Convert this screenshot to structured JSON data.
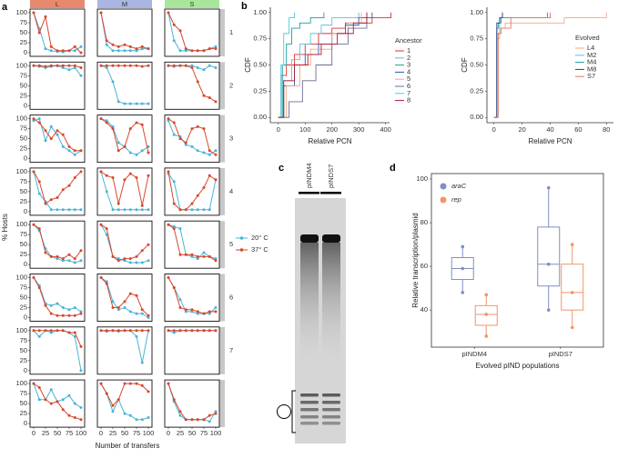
{
  "chart_data": [
    {
      "type": "small-multiples-line",
      "panel_label": "a",
      "x_label": "Number of transfers",
      "y_label": "% Hosts",
      "columns": [
        "L",
        "M",
        "S"
      ],
      "column_colors": [
        "#e8896d",
        "#a9b5e2",
        "#a8e69c"
      ],
      "rows": [
        "1",
        "2",
        "3",
        "4",
        "5",
        "6",
        "7",
        null
      ],
      "x": [
        0,
        12,
        25,
        37,
        50,
        62,
        75,
        87,
        100
      ],
      "xlim": [
        0,
        100
      ],
      "xticks": [
        0,
        25,
        50,
        75,
        100
      ],
      "ylim": [
        0,
        100
      ],
      "yticks": [
        0,
        25,
        50,
        75,
        100
      ],
      "series": [
        {
          "name": "20° C",
          "color": "#4bb4d6",
          "values": [
            [
              [
                100,
                60,
                10,
                5,
                3,
                2,
                5,
                5,
                15
              ],
              [
                100,
                20,
                5,
                5,
                5,
                5,
                5,
                10,
                10
              ],
              [
                100,
                30,
                5,
                5,
                5,
                5,
                5,
                10,
                15
              ]
            ],
            [
              [
                100,
                98,
                95,
                98,
                100,
                95,
                90,
                95,
                75
              ],
              [
                100,
                95,
                60,
                10,
                5,
                5,
                5,
                5,
                5
              ],
              [
                100,
                98,
                100,
                100,
                100,
                95,
                90,
                100,
                95
              ]
            ],
            [
              [
                95,
                100,
                45,
                80,
                60,
                30,
                20,
                10,
                20
              ],
              [
                100,
                95,
                80,
                40,
                30,
                15,
                10,
                20,
                30
              ],
              [
                95,
                60,
                55,
                35,
                30,
                20,
                15,
                10,
                20
              ]
            ],
            [
              [
                100,
                45,
                25,
                5,
                5,
                5,
                5,
                5,
                5
              ],
              [
                100,
                50,
                5,
                5,
                5,
                5,
                5,
                5,
                5
              ],
              [
                95,
                75,
                5,
                5,
                5,
                5,
                5,
                5,
                80
              ]
            ],
            [
              [
                100,
                85,
                40,
                20,
                15,
                10,
                10,
                5,
                10
              ],
              [
                100,
                75,
                20,
                15,
                10,
                5,
                5,
                5,
                10
              ],
              [
                100,
                95,
                90,
                25,
                20,
                15,
                30,
                20,
                15
              ]
            ],
            [
              [
                100,
                80,
                35,
                30,
                35,
                25,
                20,
                25,
                15
              ],
              [
                100,
                90,
                40,
                20,
                25,
                15,
                10,
                10,
                0
              ],
              [
                100,
                75,
                45,
                15,
                15,
                10,
                10,
                10,
                25
              ]
            ],
            [
              [
                100,
                85,
                100,
                95,
                100,
                100,
                95,
                85,
                0
              ],
              [
                100,
                98,
                100,
                98,
                100,
                100,
                85,
                20,
                100
              ],
              [
                100,
                95,
                100,
                100,
                100,
                100,
                100,
                100,
                100
              ]
            ],
            [
              [
                100,
                60,
                60,
                85,
                55,
                60,
                70,
                50,
                40
              ],
              [
                100,
                75,
                30,
                60,
                25,
                20,
                10,
                10,
                15
              ],
              [
                100,
                55,
                20,
                10,
                10,
                10,
                10,
                5,
                30
              ]
            ]
          ]
        },
        {
          "name": "37° C",
          "color": "#d8472b",
          "values": [
            [
              [
                100,
                50,
                90,
                15,
                5,
                5,
                5,
                15,
                0
              ],
              [
                100,
                30,
                20,
                15,
                20,
                15,
                10,
                15,
                10
              ],
              [
                100,
                70,
                55,
                10,
                5,
                5,
                5,
                10,
                10
              ]
            ],
            [
              [
                100,
                100,
                98,
                100,
                100,
                100,
                100,
                100,
                95
              ],
              [
                100,
                100,
                100,
                100,
                100,
                100,
                100,
                98,
                100
              ],
              [
                100,
                100,
                100,
                100,
                95,
                60,
                25,
                20,
                10
              ]
            ],
            [
              [
                100,
                90,
                70,
                50,
                70,
                60,
                30,
                20,
                20
              ],
              [
                100,
                90,
                75,
                20,
                30,
                75,
                90,
                85,
                15
              ],
              [
                100,
                90,
                50,
                40,
                75,
                80,
                75,
                20,
                10
              ]
            ],
            [
              [
                100,
                75,
                20,
                30,
                35,
                55,
                65,
                85,
                100
              ],
              [
                100,
                90,
                85,
                20,
                80,
                95,
                85,
                15,
                90
              ],
              [
                100,
                20,
                5,
                5,
                20,
                40,
                60,
                90,
                80
              ]
            ],
            [
              [
                100,
                90,
                30,
                20,
                20,
                15,
                25,
                15,
                35
              ],
              [
                100,
                90,
                20,
                10,
                15,
                15,
                20,
                35,
                50
              ],
              [
                100,
                90,
                25,
                25,
                25,
                20,
                20,
                20,
                10
              ]
            ],
            [
              [
                100,
                75,
                30,
                10,
                5,
                5,
                5,
                5,
                10
              ],
              [
                100,
                85,
                25,
                25,
                40,
                60,
                55,
                20,
                5
              ],
              [
                100,
                75,
                25,
                20,
                20,
                15,
                10,
                15,
                15
              ]
            ],
            [
              [
                100,
                100,
                100,
                100,
                100,
                100,
                95,
                95,
                60
              ],
              [
                100,
                100,
                100,
                100,
                100,
                100,
                100,
                100,
                100
              ],
              [
                100,
                100,
                100,
                100,
                100,
                100,
                100,
                100,
                100
              ]
            ],
            [
              [
                100,
                90,
                60,
                50,
                55,
                35,
                20,
                15,
                10
              ],
              [
                100,
                75,
                45,
                60,
                100,
                100,
                100,
                95,
                80
              ],
              [
                100,
                60,
                30,
                10,
                10,
                10,
                10,
                20,
                25
              ]
            ]
          ]
        }
      ]
    },
    {
      "type": "step",
      "panel_label": "b",
      "x_label": "Relative PCN",
      "y_label": "CDF",
      "legend_title": "Ancestor",
      "xlim": [
        -30,
        415
      ],
      "xticks": [
        0,
        100,
        200,
        300,
        400
      ],
      "ylim": [
        -0.05,
        1.05
      ],
      "yticks": [
        {
          "value": 0,
          "label": "0.00"
        },
        {
          "value": 0.25,
          "label": "0.25"
        },
        {
          "value": 0.5,
          "label": "0.50"
        },
        {
          "value": 0.75,
          "label": "0.75"
        },
        {
          "value": 1,
          "label": "1.00"
        }
      ],
      "series": [
        {
          "name": "1",
          "color": "#e0302c",
          "x": [
            0,
            10,
            30,
            60,
            100,
            150,
            200,
            250,
            350,
            420
          ],
          "values": [
            0,
            0.4,
            0.5,
            0.6,
            0.7,
            0.8,
            0.85,
            0.9,
            0.95,
            1
          ]
        },
        {
          "name": "2",
          "color": "#5bc0de",
          "x": [
            0,
            20,
            50,
            80,
            120,
            160,
            200,
            300
          ],
          "values": [
            0,
            0.35,
            0.55,
            0.7,
            0.8,
            0.88,
            0.95,
            1
          ]
        },
        {
          "name": "3",
          "color": "#1b9e9e",
          "x": [
            0,
            15,
            30,
            50,
            80,
            120,
            170
          ],
          "values": [
            0,
            0.5,
            0.7,
            0.85,
            0.9,
            0.95,
            1
          ]
        },
        {
          "name": "4",
          "color": "#2c5aa0",
          "x": [
            0,
            20,
            60,
            100,
            150,
            200,
            250,
            300,
            350
          ],
          "values": [
            0,
            0.3,
            0.5,
            0.6,
            0.7,
            0.8,
            0.88,
            0.95,
            1
          ]
        },
        {
          "name": "5",
          "color": "#f4a582",
          "x": [
            0,
            30,
            80,
            120,
            200,
            260,
            310
          ],
          "values": [
            0,
            0.3,
            0.5,
            0.65,
            0.8,
            0.9,
            1
          ]
        },
        {
          "name": "6",
          "color": "#6b6b9a",
          "x": [
            0,
            40,
            90,
            140,
            200,
            260,
            330
          ],
          "values": [
            0,
            0.15,
            0.35,
            0.5,
            0.7,
            0.85,
            1
          ]
        },
        {
          "name": "7",
          "color": "#3fd0e0",
          "x": [
            0,
            10,
            20,
            40,
            60
          ],
          "values": [
            0,
            0.5,
            0.8,
            0.95,
            1
          ]
        },
        {
          "name": "8",
          "color": "#b2182b",
          "x": [
            0,
            20,
            60,
            110,
            160,
            220,
            280,
            330
          ],
          "values": [
            0,
            0.35,
            0.5,
            0.6,
            0.7,
            0.8,
            0.9,
            1
          ]
        }
      ]
    },
    {
      "type": "step",
      "x_label": "Relative PCN",
      "y_label": "CDF",
      "legend_title": "Evolved",
      "xlim": [
        -5,
        85
      ],
      "xticks": [
        0,
        20,
        40,
        60,
        80
      ],
      "ylim": [
        -0.05,
        1.05
      ],
      "yticks": [
        {
          "value": 0,
          "label": "0.00"
        },
        {
          "value": 0.25,
          "label": "0.25"
        },
        {
          "value": 0.5,
          "label": "0.50"
        },
        {
          "value": 0.75,
          "label": "0.75"
        },
        {
          "value": 1,
          "label": "1.00"
        }
      ],
      "series": [
        {
          "name": "L4",
          "color": "#f4a582",
          "x": [
            0,
            2,
            4,
            8,
            50,
            80
          ],
          "values": [
            0,
            0.75,
            0.85,
            0.9,
            0.95,
            1
          ]
        },
        {
          "name": "M2",
          "color": "#5bc0de",
          "x": [
            0,
            2,
            4,
            6
          ],
          "values": [
            0,
            0.8,
            0.95,
            1
          ]
        },
        {
          "name": "M4",
          "color": "#1b9e9e",
          "x": [
            0,
            2,
            3,
            5,
            38
          ],
          "values": [
            0,
            0.85,
            0.9,
            0.95,
            1
          ]
        },
        {
          "name": "M8",
          "color": "#2c3e8a",
          "x": [
            0,
            2,
            4,
            6
          ],
          "values": [
            0,
            0.9,
            0.95,
            1
          ]
        },
        {
          "name": "S7",
          "color": "#e8735a",
          "x": [
            0,
            3,
            5,
            12,
            40
          ],
          "values": [
            0,
            0.8,
            0.85,
            0.95,
            1
          ]
        }
      ]
    },
    {
      "type": "gel",
      "panel_label": "c",
      "lanes": [
        "pINDM4",
        "pINDS7"
      ]
    },
    {
      "type": "box",
      "panel_label": "d",
      "x_label": "Evolved pIND populations",
      "y_label": "Relative transcription/plasmid",
      "categories": [
        "pINDM4",
        "pINDS7"
      ],
      "ylim": [
        23,
        102.5
      ],
      "yticks": [
        40,
        60,
        80,
        100
      ],
      "series": [
        {
          "name": "araC",
          "color": "#7f8fc4",
          "min": [
            48,
            40
          ],
          "q1": [
            54,
            51
          ],
          "median": [
            59,
            61
          ],
          "q3": [
            64,
            78
          ],
          "max": [
            69,
            96
          ]
        },
        {
          "name": "rep",
          "color": "#f0956b",
          "min": [
            28,
            32
          ],
          "q1": [
            33,
            40
          ],
          "median": [
            38,
            48
          ],
          "q3": [
            42,
            61
          ],
          "max": [
            47,
            70
          ]
        }
      ]
    }
  ]
}
